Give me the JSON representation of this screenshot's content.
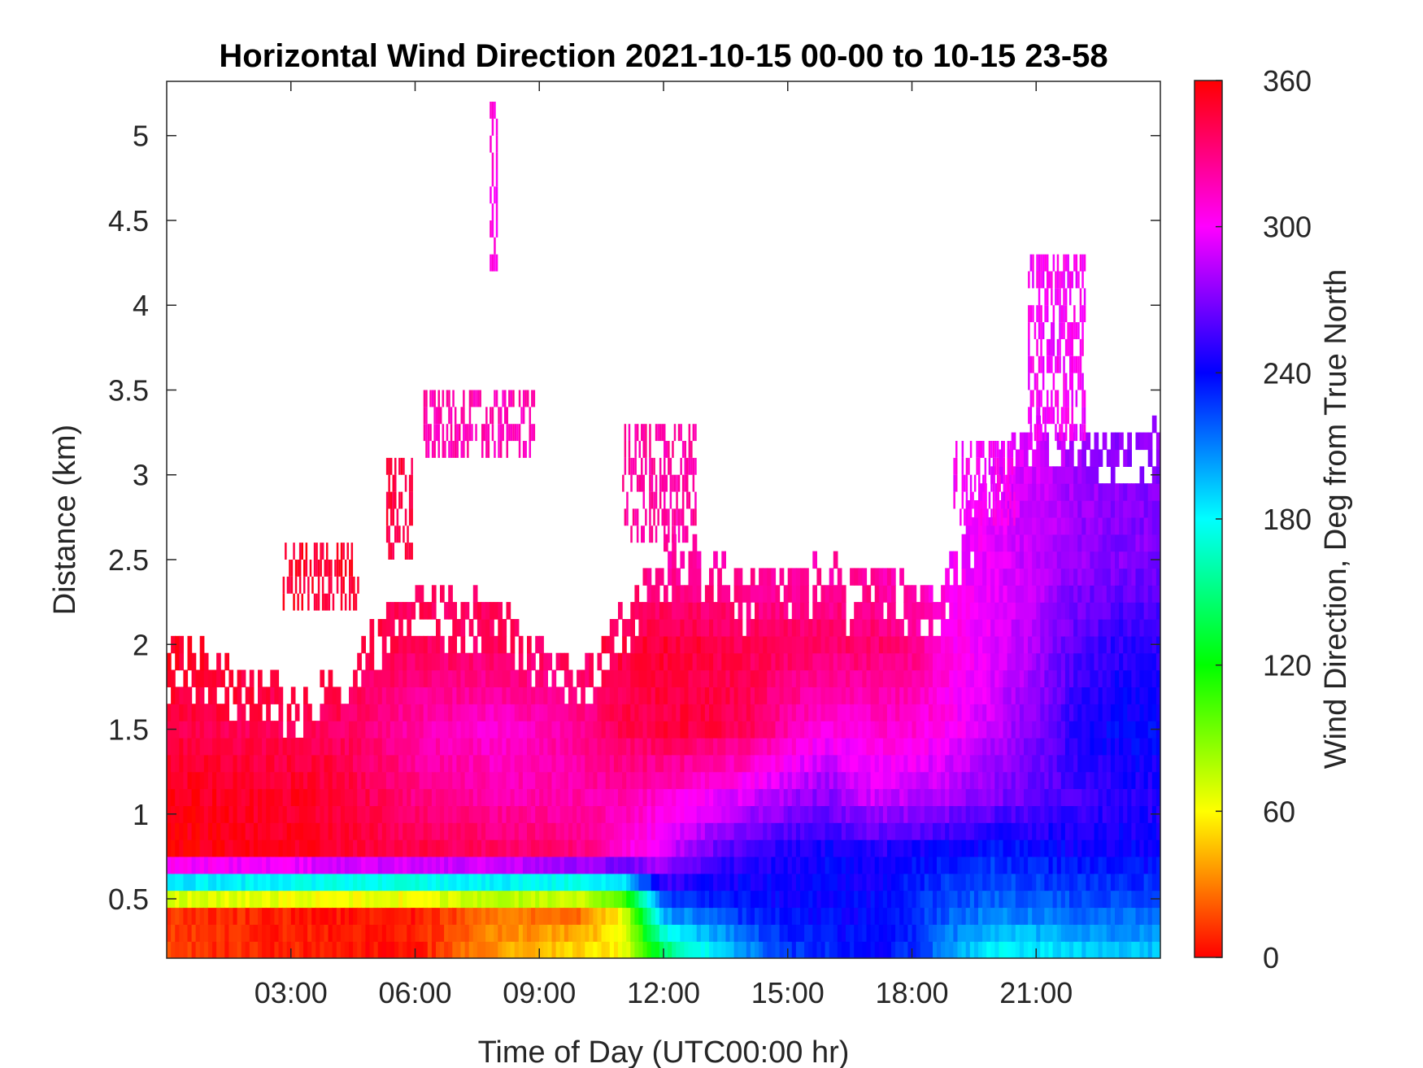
{
  "chart_data": {
    "type": "heatmap",
    "title": "Horizontal Wind Direction 2021-10-15 00-00 to 10-15 23-58",
    "xlabel": "Time of Day (UTC00:00 hr)",
    "ylabel": "Distance (km)",
    "colorbar_label": "Wind Direction, Deg from True North",
    "xlim_hours": [
      0,
      24
    ],
    "ylim_km": [
      0.15,
      5.32
    ],
    "clim_deg": [
      0,
      360
    ],
    "colormap": [
      "#ff0000",
      "#ffff00",
      "#00ff00",
      "#00ffff",
      "#0000ff",
      "#ff00ff",
      "#ff0000"
    ],
    "x_ticks": [
      {
        "value": 3,
        "label": "03:00"
      },
      {
        "value": 6,
        "label": "06:00"
      },
      {
        "value": 9,
        "label": "09:00"
      },
      {
        "value": 12,
        "label": "12:00"
      },
      {
        "value": 15,
        "label": "15:00"
      },
      {
        "value": 18,
        "label": "18:00"
      },
      {
        "value": 21,
        "label": "21:00"
      }
    ],
    "y_ticks": [
      {
        "value": 0.5,
        "label": "0.5"
      },
      {
        "value": 1,
        "label": "1"
      },
      {
        "value": 1.5,
        "label": "1.5"
      },
      {
        "value": 2,
        "label": "2"
      },
      {
        "value": 2.5,
        "label": "2.5"
      },
      {
        "value": 3,
        "label": "3"
      },
      {
        "value": 3.5,
        "label": "3.5"
      },
      {
        "value": 4,
        "label": "4"
      },
      {
        "value": 4.5,
        "label": "4.5"
      },
      {
        "value": 5,
        "label": "5"
      }
    ],
    "colorbar_ticks": [
      {
        "value": 0,
        "label": "0"
      },
      {
        "value": 60,
        "label": "60"
      },
      {
        "value": 120,
        "label": "120"
      },
      {
        "value": 180,
        "label": "180"
      },
      {
        "value": 240,
        "label": "240"
      },
      {
        "value": 300,
        "label": "300"
      },
      {
        "value": 360,
        "label": "360"
      }
    ],
    "grid": false,
    "data_top_km": [
      [
        0,
        2.0
      ],
      [
        0.7,
        2.0
      ],
      [
        1.6,
        1.8
      ],
      [
        3.2,
        1.7
      ],
      [
        4.2,
        1.7
      ],
      [
        5.2,
        2.2
      ],
      [
        6.5,
        2.3
      ],
      [
        8.5,
        2.1
      ],
      [
        10.3,
        1.8
      ],
      [
        10.6,
        2.0
      ],
      [
        11.5,
        2.4
      ],
      [
        12.3,
        2.6
      ],
      [
        13.8,
        2.4
      ],
      [
        15.0,
        2.4
      ],
      [
        17.3,
        2.4
      ],
      [
        18.1,
        2.3
      ],
      [
        18.8,
        2.3
      ],
      [
        19.2,
        2.7
      ],
      [
        20.5,
        3.2
      ],
      [
        22.5,
        3.2
      ],
      [
        24,
        3.2
      ]
    ],
    "direction_deg": [
      {
        "x": [
          0,
          2,
          4,
          6,
          8,
          10,
          11,
          12,
          13,
          14,
          15,
          16,
          17,
          18,
          19,
          20,
          21,
          22,
          23,
          24
        ],
        "bands": [
          {
            "z": 0.15,
            "v": [
              15,
              10,
              5,
              5,
              40,
              58,
              60,
              130,
              170,
              200,
              225,
              230,
              240,
              230,
              200,
              175,
              180,
              185,
              190,
              190
            ]
          },
          {
            "z": 0.45,
            "v": [
              12,
              8,
              5,
              5,
              25,
              20,
              60,
              215,
              225,
              235,
              240,
              240,
              240,
              230,
              220,
              215,
              215,
              220,
              220,
              220
            ]
          },
          {
            "z": 0.75,
            "v": [
              358,
              355,
              350,
              345,
              340,
              330,
              310,
              290,
              265,
              250,
              245,
              240,
              245,
              240,
              235,
              230,
              235,
              240,
              240,
              240
            ]
          },
          {
            "z": 1.1,
            "v": [
              355,
              352,
              350,
              330,
              320,
              320,
              320,
              310,
              300,
              290,
              280,
              270,
              290,
              285,
              280,
              270,
              262,
              255,
              250,
              250
            ]
          },
          {
            "z": 1.5,
            "v": [
              345,
              342,
              340,
              320,
              310,
              325,
              340,
              345,
              345,
              340,
              320,
              305,
              310,
              310,
              300,
              285,
              270,
              248,
              238,
              238
            ]
          },
          {
            "z": 2.0,
            "v": [
              352,
              350,
              345,
              340,
              338,
              340,
              345,
              348,
              345,
              340,
              338,
              336,
              335,
              330,
              305,
              295,
              280,
              260,
              250,
              250
            ]
          },
          {
            "z": 2.5,
            "v": [
              345,
              345,
              345,
              340,
              338,
              335,
              325,
              322,
              320,
              320,
              320,
              320,
              320,
              310,
              300,
              295,
              285,
              275,
              270,
              270
            ]
          },
          {
            "z": 3.2,
            "v": [
              330,
              330,
              330,
              325,
              322,
              320,
              320,
              320,
              320,
              320,
              320,
              320,
              320,
              305,
              300,
              295,
              290,
              280,
              275,
              275
            ]
          }
        ]
      }
    ],
    "sparse_patches_km": [
      {
        "x": [
          7.8,
          7.95
        ],
        "y": [
          4.2,
          5.1
        ],
        "deg": 305
      },
      {
        "x": [
          6.2,
          8.9
        ],
        "y": [
          3.1,
          3.5
        ],
        "deg": 318
      },
      {
        "x": [
          11.0,
          12.8
        ],
        "y": [
          2.6,
          3.3
        ],
        "deg": 322
      },
      {
        "x": [
          20.8,
          22.2
        ],
        "y": [
          3.2,
          4.3
        ],
        "deg": 300
      },
      {
        "x": [
          19.0,
          20.5
        ],
        "y": [
          2.7,
          3.2
        ],
        "deg": 300
      },
      {
        "x": [
          2.8,
          4.6
        ],
        "y": [
          2.2,
          2.6
        ],
        "deg": 350
      },
      {
        "x": [
          5.3,
          5.9
        ],
        "y": [
          2.5,
          3.1
        ],
        "deg": 345
      }
    ]
  }
}
